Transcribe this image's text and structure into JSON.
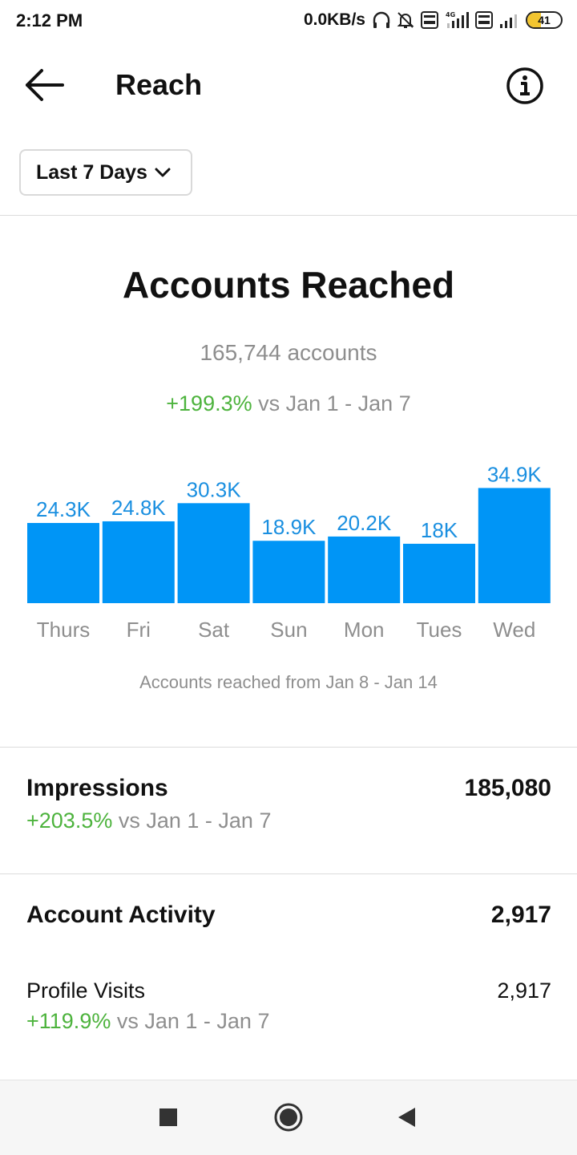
{
  "status_bar": {
    "time": "2:12 PM",
    "net_speed": "0.0KB/s",
    "icons": [
      "headphones-icon",
      "mute-bell-icon",
      "volte-icon",
      "signal-4g-icon",
      "volte-icon",
      "signal-icon"
    ],
    "volte_label": "Vo\nLTE",
    "battery_level": "41",
    "battery_fraction": 0.41
  },
  "header": {
    "title": "Reach",
    "back_icon": "back-arrow-icon",
    "info_icon": "info-icon"
  },
  "filter": {
    "label": "Last 7 Days",
    "icon": "chevron-down-icon"
  },
  "reach": {
    "title": "Accounts Reached",
    "accounts": "165,744 accounts",
    "change": "+199.3%",
    "compare": "vs Jan 1 - Jan 7",
    "caption": "Accounts reached from Jan 8 - Jan 14"
  },
  "chart_data": {
    "type": "bar",
    "categories": [
      "Thurs",
      "Fri",
      "Sat",
      "Sun",
      "Mon",
      "Tues",
      "Wed"
    ],
    "values": [
      24.3,
      24.8,
      30.3,
      18.9,
      20.2,
      18,
      34.9
    ],
    "value_labels": [
      "24.3K",
      "24.8K",
      "30.3K",
      "18.9K",
      "20.2K",
      "18K",
      "34.9K"
    ],
    "unit": "K",
    "bar_color": "#0095f6",
    "label_color": "#1a8fe0"
  },
  "impressions": {
    "title": "Impressions",
    "value": "185,080",
    "change": "+203.5%",
    "compare": "vs Jan 1 - Jan 7"
  },
  "account_activity": {
    "title": "Account Activity",
    "value": "2,917",
    "profile_visits": {
      "label": "Profile Visits",
      "value": "2,917",
      "change": "+119.9%",
      "compare": "vs Jan 1 - Jan 7"
    }
  },
  "nav": {
    "recents_icon": "square-recents-icon",
    "home_icon": "circle-home-icon",
    "back_icon": "triangle-back-icon"
  },
  "colors": {
    "accent_green": "#4db33d",
    "bar_blue": "#0095f6",
    "muted_text": "#8e8e8e"
  }
}
